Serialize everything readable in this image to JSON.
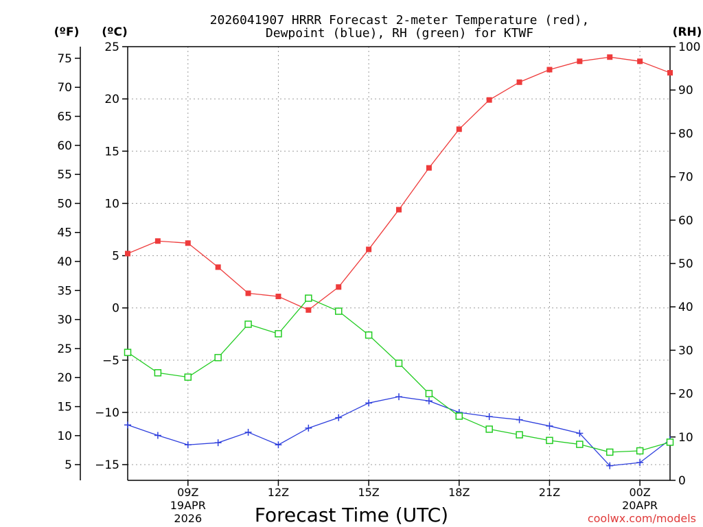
{
  "chart_data": {
    "type": "line",
    "title_line1": "2026041907 HRRR Forecast 2-meter Temperature (red),",
    "title_line2": "Dewpoint (blue), RH (green) for KTWF",
    "xlabel": "Forecast Time (UTC)",
    "credit": "coolwx.com/models",
    "left_outer_axis_label": "(ºF)",
    "left_inner_axis_label": "(ºC)",
    "right_axis_label": "(RH)",
    "x_hours": [
      7,
      8,
      9,
      10,
      11,
      12,
      13,
      14,
      15,
      16,
      17,
      18,
      19,
      20,
      21,
      22,
      23,
      24,
      25
    ],
    "xlim": [
      7,
      25
    ],
    "x_ticks": [
      {
        "hour": 9,
        "label": "09Z",
        "sub1": "19APR",
        "sub2": "2026"
      },
      {
        "hour": 12,
        "label": "12Z",
        "sub1": "",
        "sub2": ""
      },
      {
        "hour": 15,
        "label": "15Z",
        "sub1": "",
        "sub2": ""
      },
      {
        "hour": 18,
        "label": "18Z",
        "sub1": "",
        "sub2": ""
      },
      {
        "hour": 21,
        "label": "21Z",
        "sub1": "",
        "sub2": ""
      },
      {
        "hour": 24,
        "label": "00Z",
        "sub1": "20APR",
        "sub2": ""
      }
    ],
    "celsius_axis": {
      "lim": [
        -16.5,
        25
      ],
      "ticks": [
        25,
        20,
        15,
        10,
        5,
        0,
        -5,
        -10,
        -15
      ]
    },
    "fahrenheit_ticks": [
      75,
      70,
      65,
      60,
      55,
      50,
      45,
      40,
      35,
      30,
      25,
      20,
      15,
      10,
      5
    ],
    "rh_axis": {
      "lim": [
        0,
        100
      ],
      "ticks": [
        100,
        90,
        80,
        70,
        60,
        50,
        40,
        30,
        20,
        10,
        0
      ]
    },
    "series": [
      {
        "name": "Temperature",
        "unit": "C",
        "color": "#ee3b3b",
        "marker": "filled-square",
        "values": [
          5.2,
          6.4,
          6.2,
          3.9,
          1.4,
          1.1,
          -0.2,
          2.0,
          5.6,
          9.4,
          13.4,
          17.1,
          19.9,
          21.6,
          22.8,
          23.6,
          24.0,
          23.6,
          22.5
        ]
      },
      {
        "name": "Dewpoint",
        "unit": "C",
        "color": "#2e3fdd",
        "marker": "plus",
        "values": [
          -11.2,
          -12.2,
          -13.1,
          -12.9,
          -11.9,
          -13.1,
          -11.5,
          -10.5,
          -9.1,
          -8.5,
          -8.9,
          -10.0,
          -10.4,
          -10.7,
          -11.3,
          -12.0,
          -15.1,
          -14.8,
          -12.6
        ]
      },
      {
        "name": "RH",
        "unit": "%",
        "color": "#22cc22",
        "marker": "open-square",
        "values": [
          29.5,
          24.8,
          23.8,
          28.3,
          36.0,
          33.8,
          42.0,
          39.0,
          33.5,
          27.0,
          20.0,
          14.8,
          11.8,
          10.5,
          9.2,
          8.3,
          6.5,
          6.8,
          8.8
        ]
      }
    ]
  }
}
